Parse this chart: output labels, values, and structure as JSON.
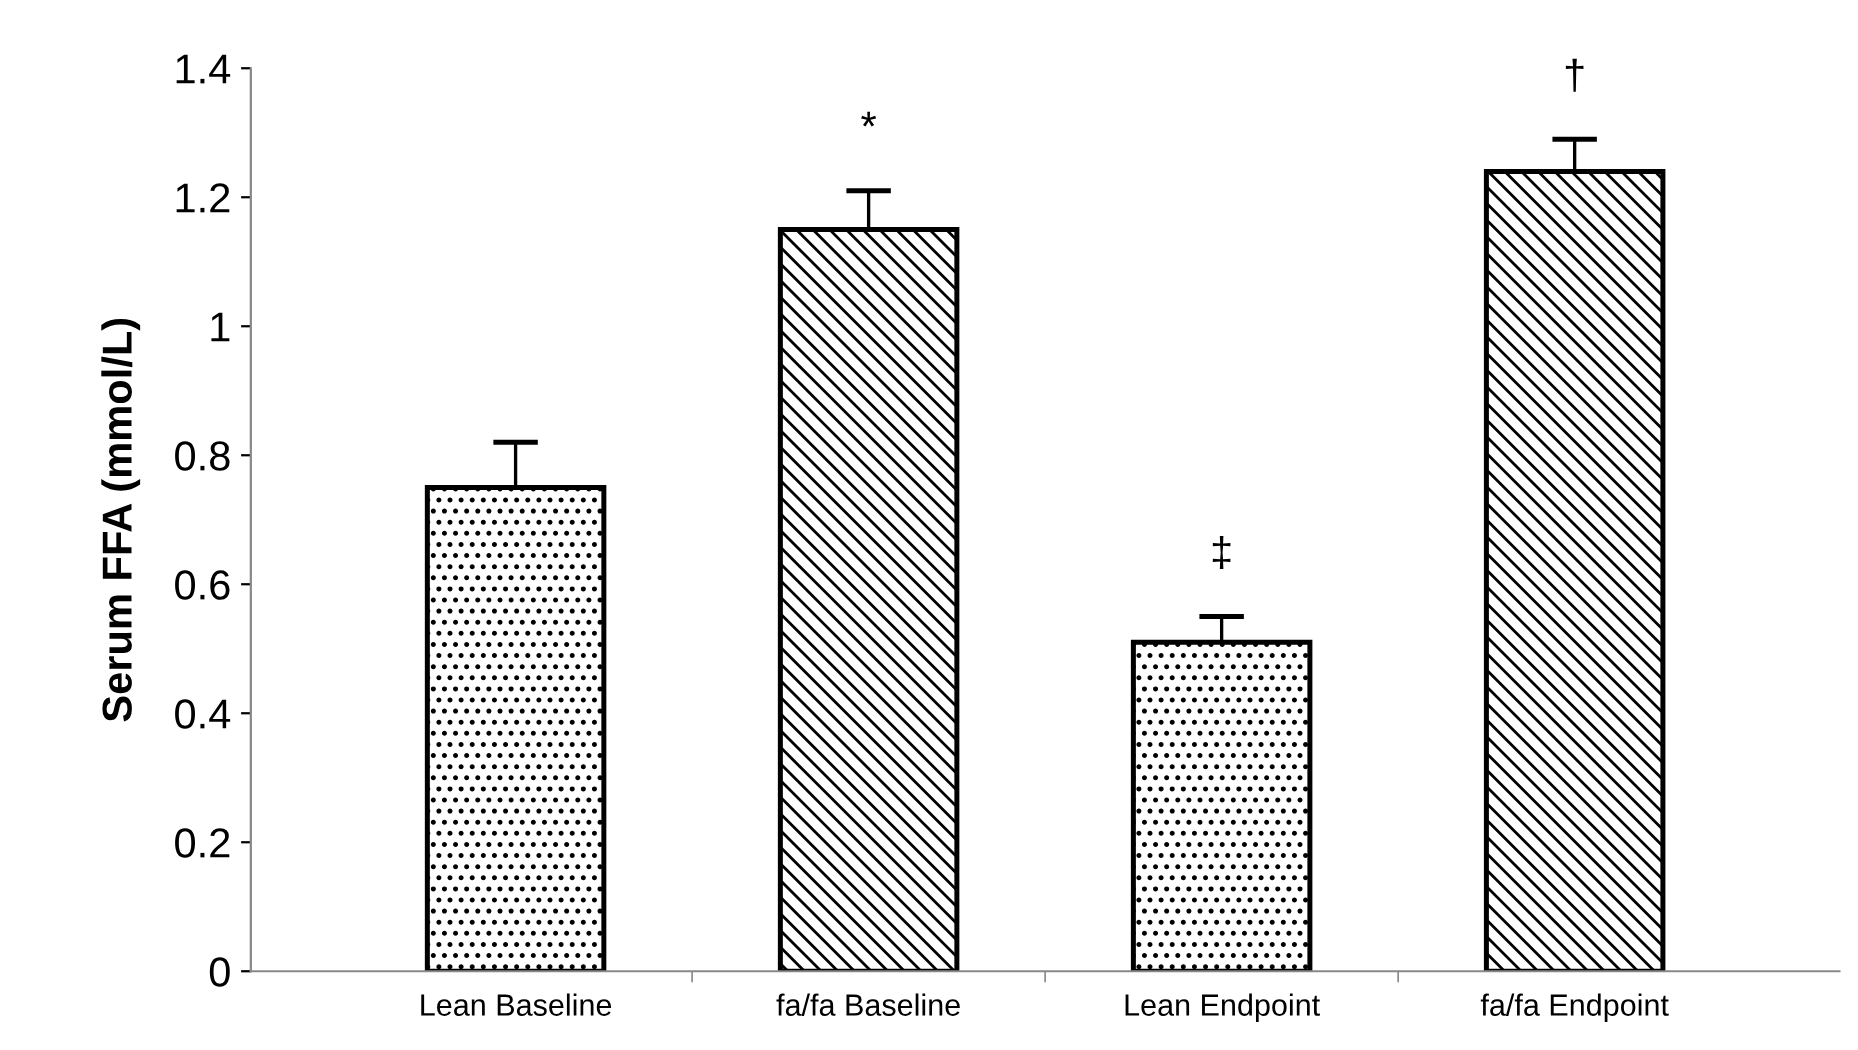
{
  "chart_data": {
    "type": "bar",
    "ylabel": "Serum FFA (mmol/L)",
    "categories": [
      "Lean Baseline",
      "fa/fa Baseline",
      "Lean Endpoint",
      "fa/fa Endpoint"
    ],
    "values": [
      0.75,
      1.15,
      0.51,
      1.24
    ],
    "errors": [
      0.07,
      0.06,
      0.04,
      0.05
    ],
    "colors": [
      "#000000",
      "#000000",
      "#000000",
      "#000000"
    ],
    "ylim": [
      0,
      1.4
    ],
    "yticks": [
      0,
      0.2,
      0.4,
      0.6,
      0.8,
      1,
      1.2,
      1.4
    ],
    "grid": false,
    "legend": false,
    "annotations": [
      "*",
      "‡",
      "†"
    ]
  }
}
